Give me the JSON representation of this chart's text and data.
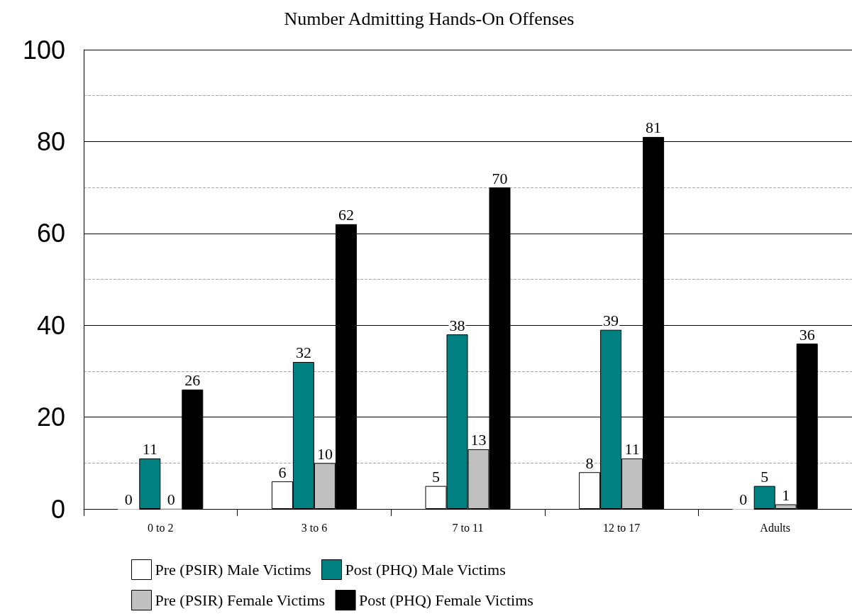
{
  "chart_data": {
    "type": "bar",
    "title": "Number Admitting Hands-On Offenses",
    "categories": [
      "0 to 2",
      "3 to 6",
      "7 to 11",
      "12 to 17",
      "Adults"
    ],
    "series": [
      {
        "name": "Pre (PSIR) Male Victims",
        "color": "#ffffff",
        "values": [
          0,
          6,
          5,
          8,
          0
        ]
      },
      {
        "name": "Post (PHQ) Male Victims",
        "color": "#008080",
        "values": [
          11,
          32,
          38,
          39,
          5
        ]
      },
      {
        "name": "Pre (PSIR) Female Victims",
        "color": "#c0c0c0",
        "values": [
          0,
          10,
          13,
          11,
          1
        ]
      },
      {
        "name": "Post (PHQ) Female Victims",
        "color": "#000000",
        "values": [
          26,
          62,
          70,
          81,
          36
        ]
      }
    ],
    "ylim": [
      0,
      100
    ],
    "yticks": [
      0,
      20,
      40,
      60,
      80,
      100
    ],
    "grid": "y",
    "legend": "bottom",
    "data_labels": true
  }
}
